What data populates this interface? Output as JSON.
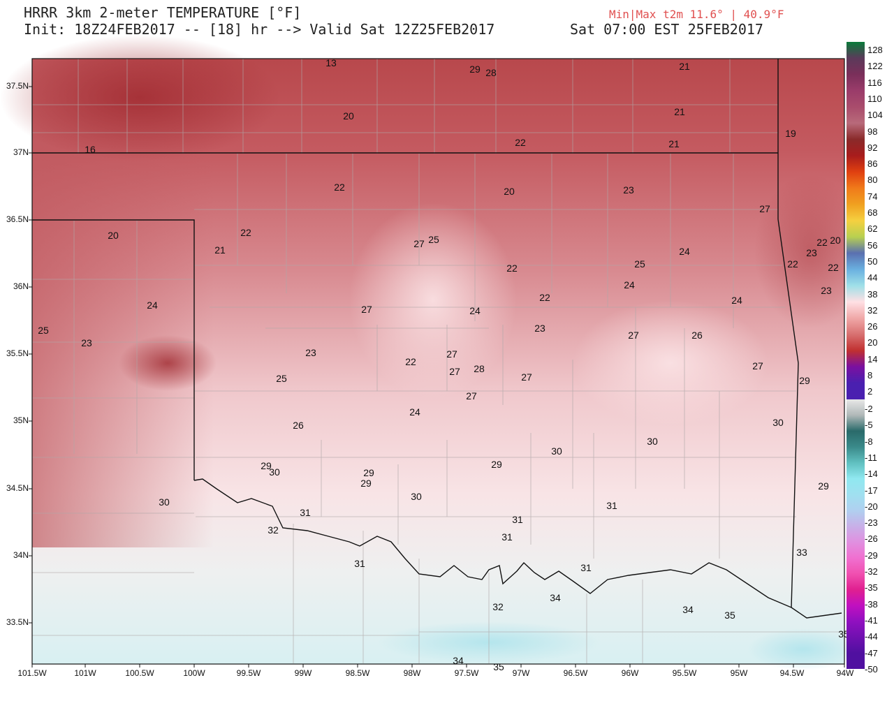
{
  "header": {
    "title_line": "HRRR 3km 2-meter TEMPERATURE [°F]",
    "init_line": "Init: 18Z24FEB2017 -- [18] hr --> Valid Sat 12Z25FEB2017",
    "minmax_line": "Min|Max t2m 11.6° | 40.9°F",
    "local_time_line": "Sat 07:00 EST 25FEB2017"
  },
  "axes": {
    "lat_labels": [
      "37.5N",
      "37N",
      "36.5N",
      "36N",
      "35.5N",
      "35N",
      "34.5N",
      "34N",
      "33.5N"
    ],
    "lon_labels": [
      "101.5W",
      "101W",
      "100.5W",
      "100W",
      "99.5W",
      "99W",
      "98.5W",
      "98W",
      "97.5W",
      "97W",
      "96.5W",
      "96W",
      "95.5W",
      "95W",
      "94.5W",
      "94W"
    ]
  },
  "colorbar": {
    "labels": [
      "128",
      "122",
      "116",
      "110",
      "104",
      "98",
      "92",
      "86",
      "80",
      "74",
      "68",
      "62",
      "56",
      "50",
      "44",
      "38",
      "32",
      "26",
      "20",
      "14",
      "8",
      "2"
    ],
    "labels_negative": [
      "-2",
      "-5",
      "-8",
      "-11",
      "-14",
      "-17",
      "-20",
      "-23",
      "-26",
      "-29",
      "-32",
      "-35",
      "-38",
      "-41",
      "-44",
      "-47",
      "-50"
    ],
    "colors": [
      "#0a7a3a",
      "#5b3a5a",
      "#7a2f5a",
      "#9a3c6a",
      "#a94c6c",
      "#b86a7a",
      "#8a2a2a",
      "#a81c1c",
      "#e04010",
      "#f07a1a",
      "#f0a020",
      "#f5d040",
      "#b8d050",
      "#5a70b0",
      "#6ab0e0",
      "#9fe0e8",
      "#ffe0e4",
      "#f0a8a8",
      "#d87070",
      "#c03030",
      "#7a10a0",
      "#4a20b0"
    ],
    "colors_negative": [
      "#e8e8e8",
      "#b0b8b8",
      "#2a6a6a",
      "#3a8a8a",
      "#60c0c0",
      "#90e8f0",
      "#a0e0f0",
      "#b0d0f0",
      "#c8b0e8",
      "#e090e0",
      "#f070d0",
      "#f050b0",
      "#e02090",
      "#c010c0",
      "#9010c0",
      "#7010b0",
      "#5010a0"
    ]
  },
  "station_values": [
    "13",
    "29",
    "28",
    "21",
    "20",
    "21",
    "19",
    "16",
    "22",
    "21",
    "22",
    "20",
    "23",
    "27",
    "20",
    "22",
    "21",
    "27",
    "25",
    "24",
    "22",
    "25",
    "22",
    "23",
    "22",
    "25",
    "24",
    "27",
    "24",
    "24",
    "23",
    "23",
    "23",
    "27",
    "26",
    "22",
    "27",
    "28",
    "27",
    "27",
    "29",
    "25",
    "27",
    "26",
    "24",
    "30",
    "30",
    "29",
    "30",
    "29",
    "29",
    "30",
    "31",
    "30",
    "31",
    "32",
    "31",
    "31",
    "31",
    "29",
    "33",
    "34",
    "32",
    "34",
    "35",
    "34",
    "35",
    "35"
  ]
}
